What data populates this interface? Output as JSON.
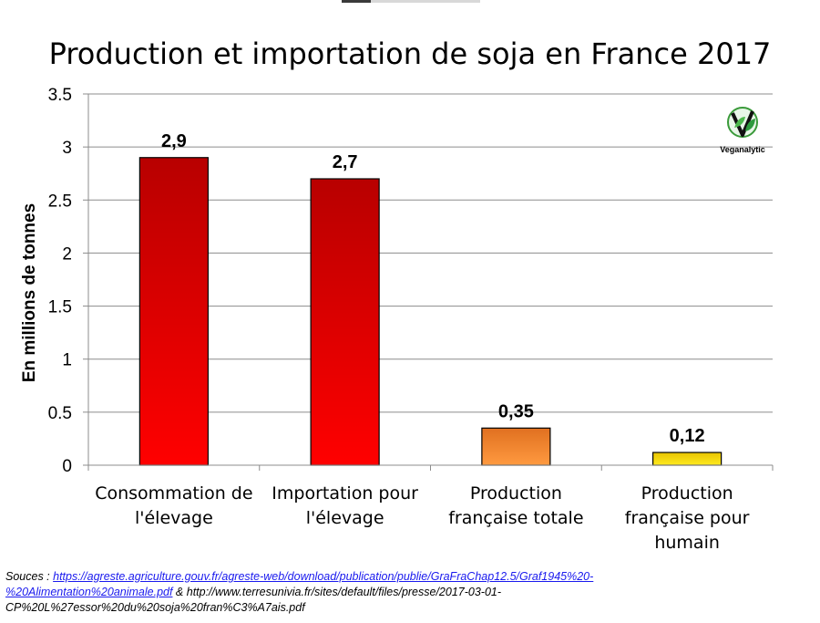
{
  "chart_data": {
    "type": "bar",
    "title": "Production et importation de soja en France 2017",
    "ylabel": "En millions de tonnes",
    "xlabel": "",
    "categories": [
      [
        "Consommation de",
        "l'élevage"
      ],
      [
        "Importation pour",
        "l'élevage"
      ],
      [
        "Production",
        "française totale"
      ],
      [
        "Production",
        "française pour",
        "humain"
      ]
    ],
    "values": [
      2.9,
      2.7,
      0.35,
      0.12
    ],
    "data_labels": [
      "2,9",
      "2,7",
      "0,35",
      "0,12"
    ],
    "ylim": [
      0,
      3.5
    ],
    "y_ticks": [
      0,
      0.5,
      1,
      1.5,
      2,
      2.5,
      3,
      3.5
    ],
    "y_tick_labels": [
      "0",
      "0.5",
      "1",
      "1.5",
      "2",
      "2.5",
      "3",
      "3.5"
    ],
    "grid": true,
    "legend": "none",
    "bar_colors": [
      {
        "top": "#b80000",
        "bottom": "#ff0000"
      },
      {
        "top": "#b80000",
        "bottom": "#ff0000"
      },
      {
        "top": "#e07020",
        "bottom": "#ff9a40"
      },
      {
        "top": "#e8c400",
        "bottom": "#ffea20"
      }
    ]
  },
  "logo": {
    "text": "Veganalytic",
    "icon": "v-leaf-logo-icon"
  },
  "sources": {
    "prefix": "Souces : ",
    "link1": "https://agreste.agriculture.gouv.fr/agreste-web/download/publication/publie/GraFraChap12.5/Graf1945%20-%20Alimentation%20animale.pdf",
    "link1_line1": "https://agreste.agriculture.gouv.fr/agreste-web/download/publication/publie/GraFraChap12.5/Graf1945%20-",
    "link1_line2": "%20Alimentation%20animale.pdf",
    "joiner": " & http://www.terresunivia.fr/sites/default/files/presse/2017-03-01-",
    "line3": "CP%20L%27essor%20du%20soja%20fran%C3%A7ais.pdf"
  }
}
